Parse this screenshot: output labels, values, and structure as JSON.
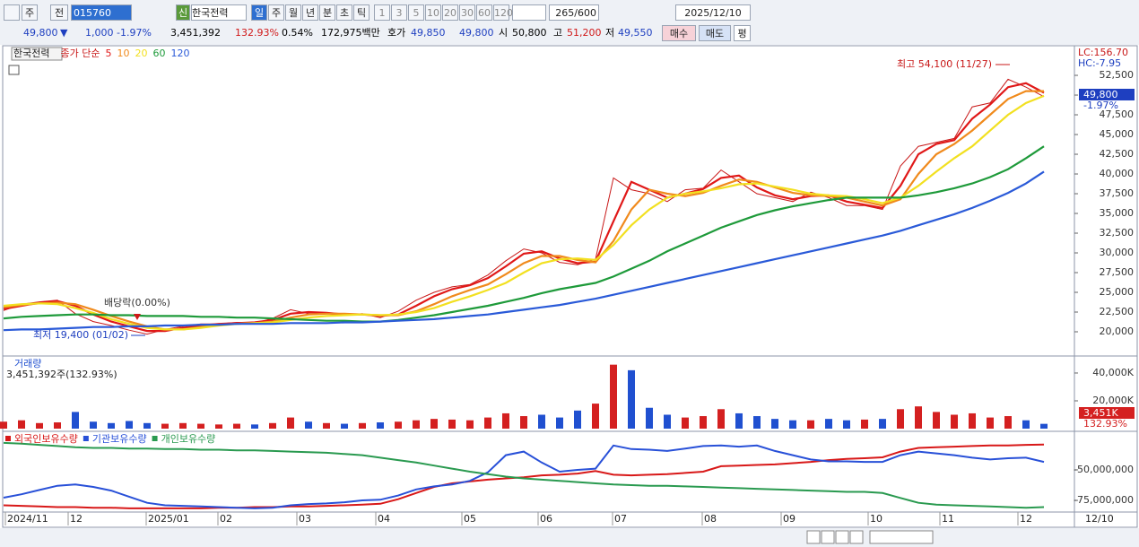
{
  "toolbar": {
    "market": "주",
    "prev": "전",
    "code": "015760",
    "new_badge": "신",
    "name": "한국전력",
    "periods": [
      "일",
      "주",
      "월",
      "년",
      "분",
      "초",
      "틱"
    ],
    "intervals": [
      "1",
      "3",
      "5",
      "10",
      "20",
      "30",
      "60",
      "120"
    ],
    "count": "265/600",
    "date": "2025/12/10"
  },
  "quote": {
    "price": "49,800",
    "arrow": "▼",
    "change": "1,000",
    "rate": "-1.97%",
    "volume": "3,451,392",
    "vol_ratio": "132.93%",
    "turnover": "0.54%",
    "amount": "172,975백만",
    "ask_label": "호가",
    "ask": "49,850",
    "bid": "49,800",
    "open_label": "시",
    "open": "50,800",
    "high_label": "고",
    "high": "51,200",
    "low_label": "저",
    "low": "49,550",
    "buy": "매수",
    "sell": "매도",
    "avg": "평"
  },
  "chart_data": [
    {
      "type": "line",
      "name": "한국전력",
      "legend_prefix": "종가 단순",
      "close_color": "#c81818",
      "values": [
        22700,
        23500,
        23800,
        24000,
        22300,
        21300,
        20800,
        20200,
        19700,
        20300,
        20700,
        21000,
        21000,
        21200,
        21100,
        21700,
        22800,
        22300,
        22300,
        22100,
        22300,
        21800,
        22600,
        24000,
        25000,
        25700,
        26000,
        27200,
        29000,
        30500,
        30000,
        28800,
        28500,
        29200,
        39500,
        38000,
        37500,
        36500,
        38000,
        38200,
        40500,
        39000,
        37500,
        37000,
        36500,
        37700,
        37000,
        36000,
        36000,
        35500,
        41000,
        43500,
        44000,
        44500,
        48500,
        49000,
        52000,
        51000,
        49800
      ],
      "series": [
        {
          "name": "5",
          "color": "#e01818",
          "values": [
            22900,
            23300,
            23700,
            23900,
            23300,
            22200,
            21300,
            20700,
            20100,
            20100,
            20500,
            20800,
            21000,
            21100,
            21200,
            21500,
            22300,
            22500,
            22400,
            22200,
            22200,
            22000,
            22200,
            23300,
            24500,
            25400,
            25900,
            26800,
            28300,
            29900,
            30200,
            29300,
            28700,
            28900,
            34000,
            39000,
            38000,
            37000,
            37500,
            38100,
            39500,
            39800,
            38300,
            37300,
            36800,
            37200,
            37300,
            36500,
            36100,
            35700,
            38500,
            42500,
            43800,
            44300,
            47000,
            48800,
            51000,
            51500,
            50300
          ]
        },
        {
          "name": "10",
          "color": "#f08a1c",
          "values": [
            23100,
            23400,
            23600,
            23700,
            23500,
            22800,
            22000,
            21300,
            20700,
            20300,
            20300,
            20600,
            20900,
            21000,
            21100,
            21300,
            21800,
            22200,
            22300,
            22300,
            22200,
            22100,
            22100,
            22600,
            23500,
            24500,
            25300,
            26000,
            27300,
            28700,
            29600,
            29600,
            29100,
            28800,
            31500,
            35500,
            38000,
            37500,
            37200,
            37600,
            38500,
            39300,
            39000,
            38300,
            37600,
            37300,
            37200,
            37000,
            36500,
            36000,
            36800,
            40000,
            42500,
            43800,
            45500,
            47500,
            49500,
            50500,
            50500
          ]
        },
        {
          "name": "20",
          "color": "#f2e020",
          "values": [
            23300,
            23500,
            23600,
            23500,
            23000,
            22400,
            21600,
            21000,
            20500,
            20300,
            20300,
            20500,
            20800,
            21000,
            21100,
            21200,
            21500,
            21800,
            22000,
            22100,
            22200,
            22100,
            22200,
            22500,
            23000,
            23800,
            24500,
            25300,
            26200,
            27500,
            28700,
            29200,
            29300,
            29100,
            31000,
            33500,
            35500,
            37000,
            37500,
            37800,
            38200,
            38700,
            38800,
            38400,
            38000,
            37500,
            37300,
            37200,
            36800,
            36300,
            37000,
            38500,
            40300,
            42000,
            43500,
            45500,
            47500,
            49000,
            49900
          ]
        },
        {
          "name": "60",
          "color": "#1e9a3a",
          "values": [
            21700,
            21900,
            22000,
            22100,
            22200,
            22200,
            22100,
            22100,
            22000,
            22000,
            22000,
            21900,
            21900,
            21800,
            21800,
            21700,
            21600,
            21500,
            21400,
            21400,
            21300,
            21300,
            21500,
            21800,
            22100,
            22500,
            22900,
            23300,
            23800,
            24300,
            24900,
            25400,
            25800,
            26200,
            27000,
            28000,
            29000,
            30200,
            31200,
            32200,
            33200,
            34000,
            34800,
            35400,
            35900,
            36300,
            36700,
            37000,
            37000,
            37000,
            37000,
            37300,
            37700,
            38200,
            38800,
            39600,
            40600,
            42000,
            43500
          ]
        },
        {
          "name": "120",
          "color": "#2a5ad8",
          "values": [
            20200,
            20300,
            20300,
            20400,
            20500,
            20600,
            20600,
            20700,
            20700,
            20800,
            20800,
            20900,
            20900,
            21000,
            21000,
            21000,
            21100,
            21100,
            21100,
            21200,
            21200,
            21300,
            21400,
            21500,
            21600,
            21800,
            22000,
            22200,
            22500,
            22800,
            23100,
            23400,
            23800,
            24200,
            24700,
            25200,
            25700,
            26200,
            26700,
            27200,
            27700,
            28200,
            28700,
            29200,
            29700,
            30200,
            30700,
            31200,
            31700,
            32200,
            32800,
            33500,
            34200,
            34900,
            35700,
            36600,
            37600,
            38800,
            40300
          ]
        }
      ],
      "ylim": [
        17160,
        56140
      ],
      "yticks": [
        {
          "value": 20000,
          "label": "20,000"
        },
        {
          "value": 22500,
          "label": "22,500"
        },
        {
          "value": 25000,
          "label": "25,000"
        },
        {
          "value": 27500,
          "label": "27,500"
        },
        {
          "value": 30000,
          "label": "30,000"
        },
        {
          "value": 32500,
          "label": "32,500"
        },
        {
          "value": 35000,
          "label": "35,000"
        },
        {
          "value": 37500,
          "label": "37,500"
        },
        {
          "value": 40000,
          "label": "40,000"
        },
        {
          "value": 42500,
          "label": "42,500"
        },
        {
          "value": 45000,
          "label": "45,000"
        },
        {
          "value": 47500,
          "label": "47,500"
        },
        {
          "value": 50000,
          "label": "50,000"
        },
        {
          "value": 52500,
          "label": "52,500"
        }
      ],
      "annotations": {
        "high": "최고 54,100 (11/27)",
        "low": "최저 19,400 (01/02)",
        "event": "배당락(0.00%)"
      },
      "side_labels": {
        "lc": "LC:156.70",
        "hc": "HC:-7.95",
        "current": "49,800",
        "rate": "-1.97%"
      }
    },
    {
      "type": "bar",
      "title": "거래량",
      "subtitle": "3,451,392주(132.93%)",
      "up_color": "#d42020",
      "down_color": "#2050d0",
      "values": [
        5000,
        6000,
        4000,
        4500,
        12000,
        5000,
        4000,
        5500,
        4000,
        3500,
        4000,
        3500,
        3000,
        3500,
        3000,
        4000,
        8000,
        5000,
        4000,
        3500,
        4000,
        4500,
        5000,
        6000,
        7000,
        6500,
        6000,
        8000,
        11000,
        9000,
        10000,
        8000,
        13000,
        18000,
        46000,
        42000,
        15000,
        10000,
        8000,
        9000,
        14000,
        11000,
        9000,
        7000,
        6000,
        6000,
        7000,
        6000,
        6500,
        7000,
        14000,
        16000,
        12000,
        10000,
        11000,
        8000,
        9000,
        6000,
        3451
      ],
      "ylim": [
        0,
        50300
      ],
      "yticks": [
        {
          "value": 20000,
          "label": "20,000K"
        },
        {
          "value": 40000,
          "label": "40,000K"
        }
      ],
      "current_label": "3,451K",
      "current_ratio": "132.93%"
    },
    {
      "type": "line",
      "series": [
        {
          "name": "외국인보유수량",
          "color": "#d81818",
          "values": [
            -79000000,
            -79500000,
            -80000000,
            -80500000,
            -80500000,
            -81000000,
            -81000000,
            -81500000,
            -81500000,
            -81500000,
            -81500000,
            -81500000,
            -81000000,
            -81000000,
            -80500000,
            -80500000,
            -80000000,
            -80000000,
            -79500000,
            -79000000,
            -78500000,
            -77800000,
            -74000000,
            -69000000,
            -64000000,
            -61000000,
            -59500000,
            -58000000,
            -57000000,
            -56000000,
            -54500000,
            -54000000,
            -53000000,
            -51000000,
            -54000000,
            -54500000,
            -54000000,
            -53500000,
            -52500000,
            -51500000,
            -47000000,
            -46500000,
            -46000000,
            -45500000,
            -44500000,
            -43500000,
            -42000000,
            -41000000,
            -40500000,
            -39700000,
            -35000000,
            -32000000,
            -31500000,
            -31000000,
            -30500000,
            -30000000,
            -30000000,
            -29500000,
            -29300000
          ]
        },
        {
          "name": "기관보유수량",
          "color": "#2850d8",
          "values": [
            -72800000,
            -70000000,
            -66500000,
            -63000000,
            -62000000,
            -64000000,
            -67000000,
            -72000000,
            -77000000,
            -79000000,
            -79500000,
            -80000000,
            -80500000,
            -81000000,
            -81500000,
            -81000000,
            -79000000,
            -78000000,
            -77500000,
            -76500000,
            -75000000,
            -74500000,
            -71000000,
            -66000000,
            -63500000,
            -62000000,
            -59000000,
            -52000000,
            -38000000,
            -35000000,
            -44000000,
            -51500000,
            -50000000,
            -49000000,
            -30000000,
            -33000000,
            -33500000,
            -34500000,
            -32500000,
            -30500000,
            -30000000,
            -31000000,
            -30000000,
            -34500000,
            -38000000,
            -41500000,
            -43000000,
            -43000000,
            -43500000,
            -43500000,
            -38000000,
            -35000000,
            -36500000,
            -38000000,
            -40000000,
            -41500000,
            -40500000,
            -40000000,
            -43500000
          ]
        },
        {
          "name": "개인보유수량",
          "color": "#2a9a50",
          "values": [
            -27900000,
            -28500000,
            -29500000,
            -30500000,
            -31500000,
            -32000000,
            -32000000,
            -32500000,
            -32500000,
            -33000000,
            -33000000,
            -33500000,
            -33500000,
            -34000000,
            -34000000,
            -34500000,
            -35000000,
            -35500000,
            -36000000,
            -37000000,
            -38000000,
            -40000000,
            -42000000,
            -44000000,
            -46500000,
            -49000000,
            -51500000,
            -53500000,
            -55500000,
            -57000000,
            -58000000,
            -59000000,
            -60000000,
            -61000000,
            -62000000,
            -62500000,
            -63000000,
            -63000000,
            -63500000,
            -64000000,
            -64500000,
            -65000000,
            -65500000,
            -66000000,
            -66500000,
            -67000000,
            -67500000,
            -68000000,
            -68000000,
            -69000000,
            -73000000,
            -77000000,
            -78500000,
            -79000000,
            -79500000,
            -80000000,
            -80500000,
            -81000000,
            -80500000
          ]
        }
      ],
      "ylim": [
        -83800000,
        -19900000
      ],
      "yticks": [
        {
          "value": -50000000,
          "label": "-50,000,000"
        },
        {
          "value": -75000000,
          "label": "-75,000,000"
        }
      ],
      "xlim": [
        0,
        58
      ],
      "xticks": [
        {
          "value": 0.1,
          "label": "2024/11"
        },
        {
          "value": 3.6,
          "label": "12"
        },
        {
          "value": 7.95,
          "label": "2025/01"
        },
        {
          "value": 11.95,
          "label": "02"
        },
        {
          "value": 16.35,
          "label": "03"
        },
        {
          "value": 20.75,
          "label": "04"
        },
        {
          "value": 25.55,
          "label": "05"
        },
        {
          "value": 29.8,
          "label": "06"
        },
        {
          "value": 33.95,
          "label": "07"
        },
        {
          "value": 38.95,
          "label": "08"
        },
        {
          "value": 43.35,
          "label": "09"
        },
        {
          "value": 48.2,
          "label": "10"
        },
        {
          "value": 52.2,
          "label": "11"
        },
        {
          "value": 56.55,
          "label": "12"
        }
      ],
      "last_date": "12/10"
    }
  ]
}
